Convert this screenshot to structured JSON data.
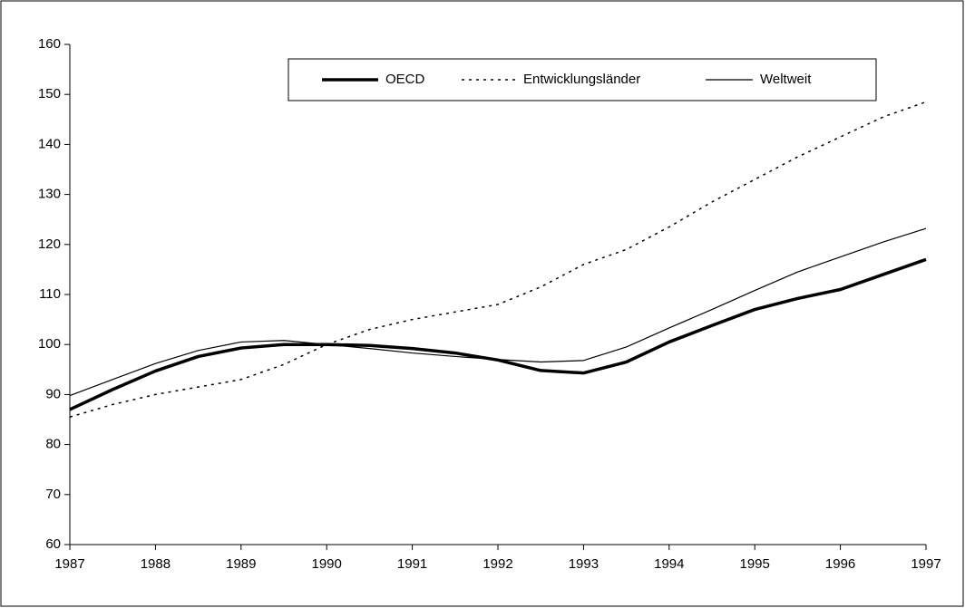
{
  "chart_data": {
    "type": "line",
    "x": [
      1987,
      1987.5,
      1988,
      1988.5,
      1989,
      1989.5,
      1990,
      1990.5,
      1991,
      1991.5,
      1992,
      1992.5,
      1993,
      1993.5,
      1994,
      1994.5,
      1995,
      1995.5,
      1996,
      1996.5,
      1997
    ],
    "series": [
      {
        "name": "OECD",
        "color": "#000000",
        "line_width": 3.5,
        "dashed": false,
        "values": [
          87,
          91,
          94.7,
          97.6,
          99.3,
          100,
          100,
          99.8,
          99.2,
          98.3,
          96.9,
          94.8,
          94.3,
          96.5,
          100.5,
          103.8,
          107,
          109.2,
          111,
          114,
          117
        ]
      },
      {
        "name": "Entwicklungsländer",
        "color": "#000000",
        "line_width": 1.5,
        "dashed": true,
        "values": [
          85.5,
          88,
          90,
          91.5,
          93,
          96,
          100,
          103,
          105,
          106.5,
          108,
          111.5,
          116,
          119,
          123.5,
          128.5,
          133,
          137.5,
          141.5,
          145.5,
          148.5
        ]
      },
      {
        "name": "Weltweit",
        "color": "#000000",
        "line_width": 1.2,
        "dashed": false,
        "values": [
          89.8,
          93,
          96.2,
          98.8,
          100.5,
          100.8,
          100,
          99.2,
          98.3,
          97.6,
          97,
          96.5,
          96.8,
          99.5,
          103.3,
          107,
          110.8,
          114.5,
          117.5,
          120.5,
          123.2
        ]
      }
    ],
    "xlim": [
      1987,
      1997
    ],
    "xticks": [
      1987,
      1988,
      1989,
      1990,
      1991,
      1992,
      1993,
      1994,
      1995,
      1996,
      1997
    ],
    "ylim": [
      60,
      160
    ],
    "yticks": [
      60,
      70,
      80,
      90,
      100,
      110,
      120,
      130,
      140,
      150,
      160
    ],
    "grid": false,
    "legend": "top"
  }
}
